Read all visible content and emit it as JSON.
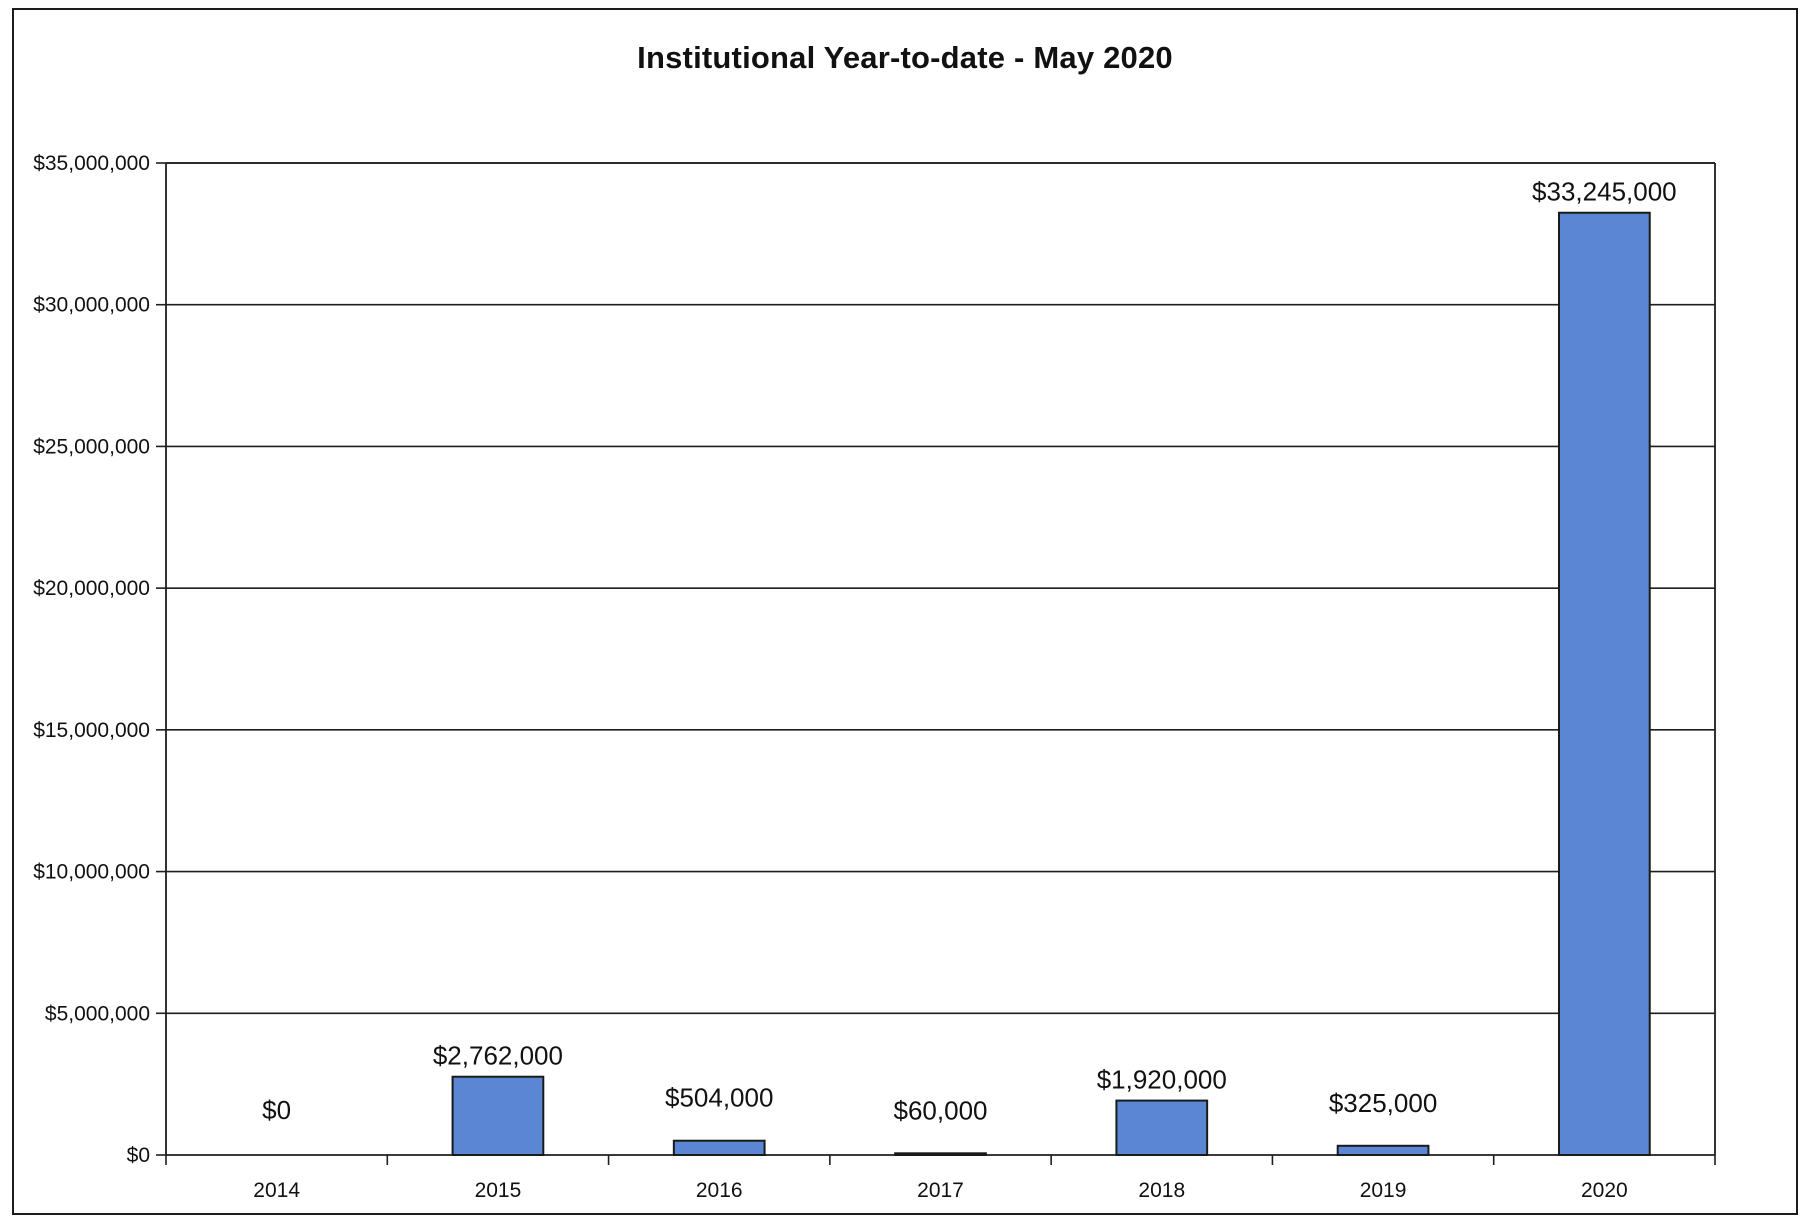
{
  "chart_data": {
    "type": "bar",
    "title": "Institutional Year-to-date - May 2020",
    "xlabel": "",
    "ylabel": "",
    "categories": [
      "2014",
      "2015",
      "2016",
      "2017",
      "2018",
      "2019",
      "2020"
    ],
    "values": [
      0,
      2762000,
      504000,
      60000,
      1920000,
      325000,
      33245000
    ],
    "data_labels": [
      "$0",
      "$2,762,000",
      "$504,000",
      "$60,000",
      "$1,920,000",
      "$325,000",
      "$33,245,000"
    ],
    "ylim": [
      0,
      35000000
    ],
    "y_ticks": [
      0,
      5000000,
      10000000,
      15000000,
      20000000,
      25000000,
      30000000,
      35000000
    ],
    "y_tick_labels": [
      "$0",
      "$5,000,000",
      "$10,000,000",
      "$15,000,000",
      "$20,000,000",
      "$25,000,000",
      "$30,000,000",
      "$35,000,000"
    ],
    "grid": true,
    "legend": "none",
    "colors": {
      "bar_fill": "#5a86d3",
      "bar_stroke": "#1a1a1a",
      "grid": "#1e1e1e",
      "text": "#111111"
    }
  }
}
